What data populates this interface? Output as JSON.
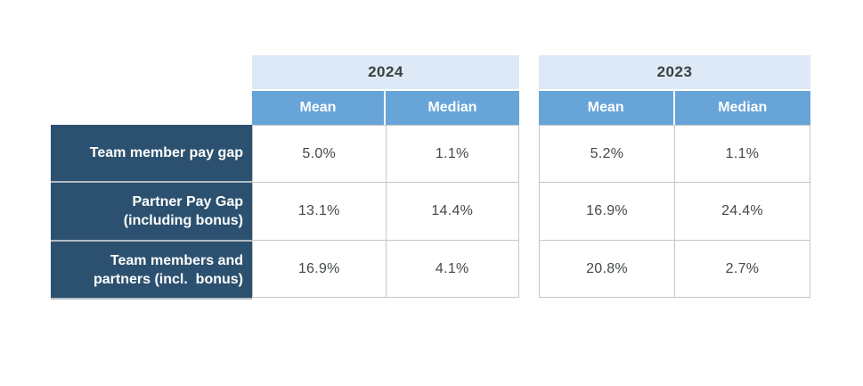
{
  "table": {
    "years": [
      "2024",
      "2023"
    ],
    "subheaders": {
      "mean": "Mean",
      "median": "Median"
    },
    "rows": [
      {
        "label": "Team member pay gap",
        "y2024": {
          "mean": "5.0%",
          "median": "1.1%"
        },
        "y2023": {
          "mean": "5.2%",
          "median": "1.1%"
        }
      },
      {
        "label": "Partner Pay Gap\n(including bonus)",
        "y2024": {
          "mean": "13.1%",
          "median": "14.4%"
        },
        "y2023": {
          "mean": "16.9%",
          "median": "24.4%"
        }
      },
      {
        "label": "Team members and\npartners (incl.  bonus)",
        "y2024": {
          "mean": "16.9%",
          "median": "4.1%"
        },
        "y2023": {
          "mean": "20.8%",
          "median": "2.7%"
        }
      }
    ]
  },
  "colors": {
    "year_band": "#dde9f6",
    "subheader_band": "#67a4d8",
    "label_background": "#2c5170",
    "label_separator": "#b2bcc2",
    "grid_border": "#c6c6c6",
    "value_text": "#434848",
    "header_text": "#ffffff",
    "year_text": "#3b4141"
  },
  "chart_data": {
    "type": "table",
    "title": "",
    "column_groups": [
      "2024",
      "2023"
    ],
    "columns": [
      "Mean",
      "Median"
    ],
    "categories": [
      "Team member pay gap",
      "Partner Pay Gap (including bonus)",
      "Team members and partners (incl. bonus)"
    ],
    "series": [
      {
        "name": "2024 Mean",
        "values": [
          5.0,
          13.1,
          16.9
        ]
      },
      {
        "name": "2024 Median",
        "values": [
          1.1,
          14.4,
          4.1
        ]
      },
      {
        "name": "2023 Mean",
        "values": [
          5.2,
          16.9,
          20.8
        ]
      },
      {
        "name": "2023 Median",
        "values": [
          1.1,
          24.4,
          2.7
        ]
      }
    ],
    "unit": "%",
    "layout_hints": "two side-by-side year blocks, dark navy row-label column, no gridlines outside table"
  }
}
